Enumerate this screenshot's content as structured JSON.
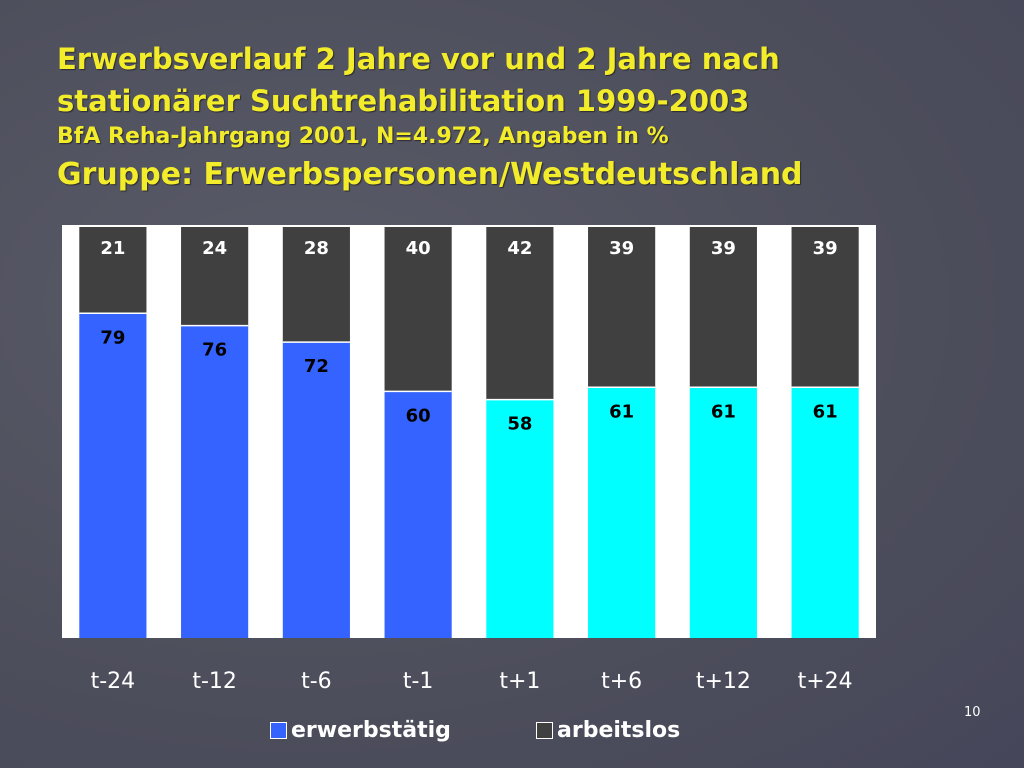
{
  "slide": {
    "page_number": "10"
  },
  "chart_data": {
    "type": "bar",
    "stacked": true,
    "title_lines": [
      "Erwerbsverlauf 2 Jahre vor und 2 Jahre nach",
      "stationärer Suchtrehabilitation 1999-2003",
      "BfA Reha-Jahrgang 2001, N=4.972, Angaben in %",
      "Gruppe: Erwerbspersonen/Westdeutschland"
    ],
    "categories": [
      "t-24",
      "t-12",
      "t-6",
      "t-1",
      "t+1",
      "t+6",
      "t+12",
      "t+24"
    ],
    "series": [
      {
        "name": "erwerbstätig",
        "values": [
          79,
          76,
          72,
          60,
          58,
          61,
          61,
          61
        ],
        "colors": [
          "#3563ff",
          "#3563ff",
          "#3563ff",
          "#3563ff",
          "#00ffff",
          "#00ffff",
          "#00ffff",
          "#00ffff"
        ]
      },
      {
        "name": "arbeitslos",
        "values": [
          21,
          24,
          28,
          40,
          42,
          39,
          39,
          39
        ],
        "color": "#404040"
      }
    ],
    "ylim": [
      0,
      100
    ],
    "xlabel": "",
    "ylabel": "",
    "legend_position": "bottom",
    "legend": {
      "employed_label": "erwerbstätig",
      "unemployed_label": "arbeitslos",
      "employed_color": "#3563ff",
      "unemployed_color": "#404040"
    },
    "plot_background": "#ffffff",
    "label_colors": {
      "employed": "#000000",
      "unemployed": "#ffffff"
    }
  }
}
